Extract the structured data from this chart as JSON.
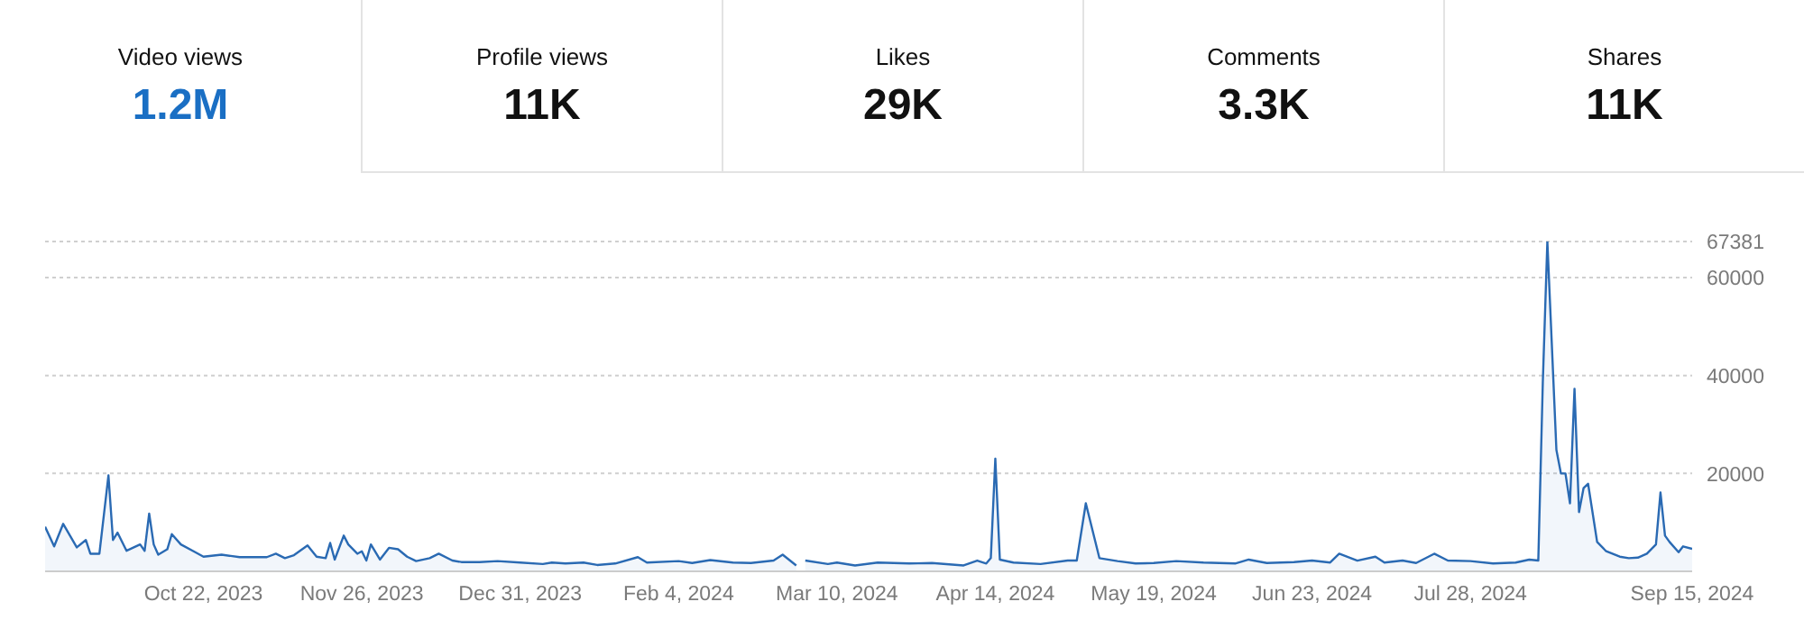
{
  "chart_data": [
    {
      "type": "other",
      "categories": [
        "Video views",
        "Profile views",
        "Likes",
        "Comments",
        "Shares"
      ],
      "value_labels": [
        "1.2M",
        "11K",
        "29K",
        "3.3K",
        "11K"
      ],
      "colors": [
        "#1a6fc4",
        "#111111",
        "#111111",
        "#111111",
        "#111111"
      ]
    },
    {
      "type": "area",
      "color": "#2a6ab3",
      "grid": "y",
      "x": [
        "2023-09-17",
        "2023-09-19",
        "2023-09-21",
        "2023-09-24",
        "2023-09-26",
        "2023-09-27",
        "2023-09-29",
        "2023-10-01",
        "2023-10-02",
        "2023-10-03",
        "2023-10-05",
        "2023-10-08",
        "2023-10-09",
        "2023-10-10",
        "2023-10-11",
        "2023-10-12",
        "2023-10-14",
        "2023-10-15",
        "2023-10-17",
        "2023-10-20",
        "2023-10-22",
        "2023-10-26",
        "2023-10-30",
        "2023-11-05",
        "2023-11-07",
        "2023-11-09",
        "2023-11-11",
        "2023-11-14",
        "2023-11-16",
        "2023-11-18",
        "2023-11-19",
        "2023-11-20",
        "2023-11-22",
        "2023-11-23",
        "2023-11-25",
        "2023-11-26",
        "2023-11-27",
        "2023-11-28",
        "2023-11-30",
        "2023-12-02",
        "2023-12-04",
        "2023-12-06",
        "2023-12-08",
        "2023-12-11",
        "2023-12-13",
        "2023-12-16",
        "2023-12-18",
        "2023-12-22",
        "2023-12-26",
        "2023-12-31",
        "2024-01-05",
        "2024-01-07",
        "2024-01-10",
        "2024-01-14",
        "2024-01-17",
        "2024-01-21",
        "2024-01-26",
        "2024-01-28",
        "2024-02-04",
        "2024-02-07",
        "2024-02-11",
        "2024-02-16",
        "2024-02-20",
        "2024-02-25",
        "2024-02-27",
        "2024-03-01",
        "2024-03-02",
        "2024-03-03",
        "2024-03-08",
        "2024-03-10",
        "2024-03-14",
        "2024-03-19",
        "2024-03-26",
        "2024-03-31",
        "2024-04-07",
        "2024-04-10",
        "2024-04-12",
        "2024-04-13",
        "2024-04-14",
        "2024-04-15",
        "2024-04-18",
        "2024-04-24",
        "2024-04-30",
        "2024-05-02",
        "2024-05-04",
        "2024-05-07",
        "2024-05-11",
        "2024-05-15",
        "2024-05-19",
        "2024-05-24",
        "2024-05-30",
        "2024-06-06",
        "2024-06-09",
        "2024-06-13",
        "2024-06-19",
        "2024-06-23",
        "2024-06-27",
        "2024-06-29",
        "2024-07-03",
        "2024-07-07",
        "2024-07-09",
        "2024-07-13",
        "2024-07-16",
        "2024-07-20",
        "2024-07-23",
        "2024-07-28",
        "2024-08-02",
        "2024-08-07",
        "2024-08-10",
        "2024-08-12",
        "2024-08-13",
        "2024-08-14",
        "2024-08-16",
        "2024-08-17",
        "2024-08-18",
        "2024-08-19",
        "2024-08-20",
        "2024-08-21",
        "2024-08-22",
        "2024-08-23",
        "2024-08-25",
        "2024-08-27",
        "2024-08-30",
        "2024-09-01",
        "2024-09-03",
        "2024-09-05",
        "2024-09-07",
        "2024-09-08",
        "2024-09-09",
        "2024-09-10",
        "2024-09-12",
        "2024-09-13",
        "2024-09-15"
      ],
      "values": [
        9100,
        5100,
        9700,
        4900,
        6400,
        3600,
        3600,
        19600,
        6400,
        7900,
        4200,
        5500,
        4200,
        11800,
        5500,
        3400,
        4500,
        7600,
        5500,
        4000,
        3000,
        3400,
        2900,
        2900,
        3600,
        2700,
        3300,
        5300,
        3000,
        2700,
        5800,
        2400,
        7300,
        5500,
        3600,
        4100,
        2200,
        5500,
        2400,
        4800,
        4500,
        3000,
        2100,
        2700,
        3600,
        2200,
        1900,
        1900,
        2100,
        1800,
        1500,
        1800,
        1600,
        1800,
        1300,
        1600,
        2900,
        1800,
        2100,
        1700,
        2300,
        1800,
        1700,
        2200,
        3400,
        1200,
        null,
        2200,
        1500,
        1800,
        1200,
        1800,
        1600,
        1700,
        1200,
        2200,
        1600,
        2700,
        23000,
        2400,
        1800,
        1500,
        2200,
        2200,
        13900,
        2700,
        2100,
        1600,
        1700,
        2100,
        1800,
        1600,
        2400,
        1700,
        1900,
        2200,
        1800,
        3600,
        2200,
        3000,
        1800,
        2200,
        1700,
        3600,
        2200,
        2100,
        1600,
        1800,
        2400,
        2200,
        38800,
        67381,
        24800,
        20000,
        20000,
        13900,
        37300,
        12100,
        17000,
        17900,
        6000,
        4100,
        3000,
        2700,
        2800,
        3600,
        5500,
        16100,
        7300,
        6000,
        3900,
        5100,
        4600
      ],
      "xlim": [
        "2023-09-17",
        "2024-09-15"
      ],
      "xticks": [
        {
          "value": "2023-10-22",
          "label": "Oct 22, 2023"
        },
        {
          "value": "2023-11-26",
          "label": "Nov 26, 2023"
        },
        {
          "value": "2023-12-31",
          "label": "Dec 31, 2023"
        },
        {
          "value": "2024-02-04",
          "label": "Feb 4, 2024"
        },
        {
          "value": "2024-03-10",
          "label": "Mar 10, 2024"
        },
        {
          "value": "2024-04-14",
          "label": "Apr 14, 2024"
        },
        {
          "value": "2024-05-19",
          "label": "May 19, 2024"
        },
        {
          "value": "2024-06-23",
          "label": "Jun 23, 2024"
        },
        {
          "value": "2024-07-28",
          "label": "Jul 28, 2024"
        },
        {
          "value": "2024-09-15",
          "label": "Sep 15, 2024"
        }
      ],
      "ylim": [
        0,
        67381
      ],
      "yticks": [
        20000,
        40000,
        60000,
        67381
      ]
    }
  ]
}
